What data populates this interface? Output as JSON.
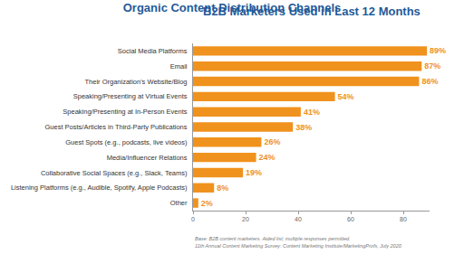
{
  "chart_data": {
    "type": "bar",
    "orientation": "horizontal",
    "title": "Organic Content Distribution Channels",
    "subtitle": "B2B Marketers Used in Last 12 Months",
    "categories": [
      "Social Media Platforms",
      "Email",
      "Their Organization's Website/Blog",
      "Speaking/Presenting at Virtual Events",
      "Speaking/Presenting at In-Person Events",
      "Guest Posts/Articles in Third-Party Publications",
      "Guest Spots (e.g., podcasts, live videos)",
      "Media/Influencer Relations",
      "Collaborative Social Spaces (e.g., Slack, Teams)",
      "Listening Platforms (e.g., Audible, Spotify, Apple Podcasts)",
      "Other"
    ],
    "values": [
      89,
      87,
      86,
      54,
      41,
      38,
      26,
      24,
      19,
      8,
      2
    ],
    "value_labels": [
      "89%",
      "87%",
      "86%",
      "54%",
      "41%",
      "38%",
      "26%",
      "24%",
      "19%",
      "8%",
      "2%"
    ],
    "data_labels": true,
    "color": "#f0921e",
    "xlim": [
      0,
      90
    ],
    "xticks": [
      0,
      20,
      40,
      60,
      80
    ],
    "grid": false,
    "annotations": [
      "Base: B2B content marketers. Aided list; multiple responses permitted.",
      "11th Annual Content Marketing Survey: Content Marketing Institute/MarketingProfs, July 2020"
    ]
  }
}
